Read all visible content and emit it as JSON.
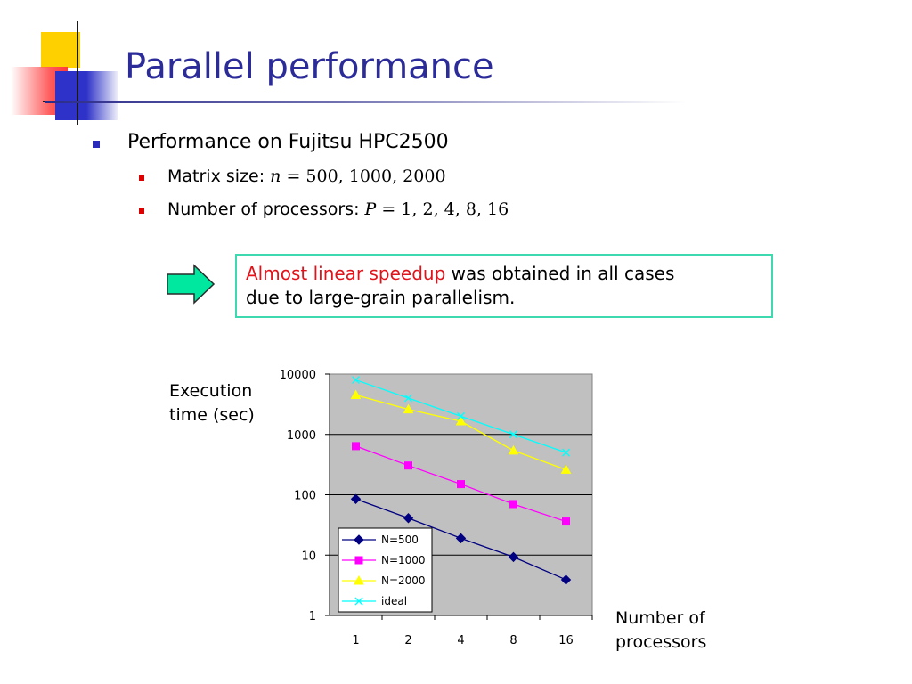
{
  "slide": {
    "title": "Parallel performance",
    "bullet_main": "Performance on Fujitsu HPC2500",
    "matrix_label": "Matrix size: ",
    "matrix_var": "n",
    "matrix_values": " = 500, 1000, 2000",
    "proc_label": "Number of processors: ",
    "proc_var": "P",
    "proc_values": " = 1, 2, 4, 8, 16",
    "callout_highlight": "Almost linear speedup",
    "callout_rest_1": " was obtained in all cases",
    "callout_rest_2": "due to large-grain parallelism.",
    "colors": {
      "title": "#2b2b99",
      "highlight": "#e0121a",
      "callout_border": "#3fd9b0",
      "arrow_fill": "#00e8a0"
    }
  },
  "chart_data": {
    "type": "line",
    "y_scale": "log",
    "ylim": [
      1,
      10000
    ],
    "y_ticks": [
      "1",
      "10",
      "100",
      "1000",
      "10000"
    ],
    "categories": [
      "1",
      "2",
      "4",
      "8",
      "16"
    ],
    "ylabel_line1": "Execution",
    "ylabel_line2": "time (sec)",
    "xlabel_line1": "Number of",
    "xlabel_line2": "processors",
    "grid": true,
    "legend_position": "bottom-left",
    "series": [
      {
        "name": "N=500",
        "color": "#000080",
        "marker": "diamond",
        "values": [
          85,
          41,
          19,
          9.3,
          3.9
        ]
      },
      {
        "name": "N=1000",
        "color": "#ff00ff",
        "marker": "square",
        "values": [
          640,
          305,
          150,
          70,
          36
        ]
      },
      {
        "name": "N=2000",
        "color": "#ffff00",
        "marker": "triangle",
        "values": [
          4500,
          2600,
          1650,
          540,
          260
        ]
      },
      {
        "name": "ideal",
        "color": "#00ffff",
        "marker": "x",
        "values": [
          8000,
          4000,
          2000,
          1000,
          500
        ]
      }
    ]
  }
}
